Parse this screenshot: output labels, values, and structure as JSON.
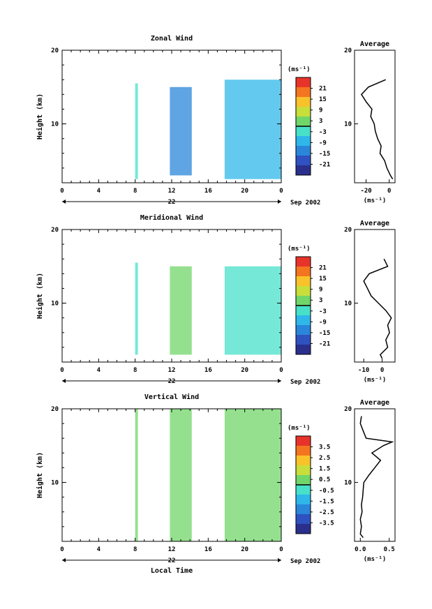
{
  "chart_data": [
    {
      "type": "heatmap",
      "title": "Zonal Wind",
      "ylabel": "Height (km)",
      "xlim": [
        0,
        24
      ],
      "ylim": [
        2,
        20
      ],
      "x_ticks": [
        "0",
        "4",
        "8",
        "12",
        "16",
        "20",
        "0"
      ],
      "y_ticks": [
        "10",
        "20"
      ],
      "day_label": "22",
      "date_label": "Sep 2002",
      "colorbar": {
        "unit": "(ms⁻¹)",
        "ticks": [
          "21",
          "15",
          "9",
          "3",
          "-3",
          "-9",
          "-15",
          "-21"
        ],
        "range": [
          -24,
          24
        ]
      },
      "data_blocks": [
        {
          "x_range": [
            8,
            8.3
          ],
          "y_range": [
            2.5,
            15.5
          ],
          "value": -5
        },
        {
          "x_range": [
            11.8,
            14.2
          ],
          "y_range": [
            3,
            15
          ],
          "value": -12
        },
        {
          "x_range": [
            17.8,
            24
          ],
          "y_range": [
            2.5,
            16
          ],
          "value": -10
        }
      ],
      "average_profile": {
        "title": "Average",
        "xlabel": "(ms⁻¹)",
        "x_ticks": [
          "-20",
          "0"
        ],
        "xlim": [
          -30,
          5
        ],
        "heights": [
          2.5,
          3,
          4,
          5,
          6,
          7,
          8,
          9,
          10,
          11,
          12,
          13,
          14,
          15,
          16
        ],
        "values": [
          3,
          1,
          -2,
          -4,
          -8,
          -7,
          -10,
          -12,
          -13,
          -16,
          -15,
          -20,
          -24,
          -18,
          -3
        ]
      }
    },
    {
      "type": "heatmap",
      "title": "Meridional Wind",
      "ylabel": "Height (km)",
      "xlim": [
        0,
        24
      ],
      "ylim": [
        2,
        20
      ],
      "x_ticks": [
        "0",
        "4",
        "8",
        "12",
        "16",
        "20",
        "0"
      ],
      "y_ticks": [
        "10",
        "20"
      ],
      "day_label": "22",
      "date_label": "Sep 2002",
      "colorbar": {
        "unit": "(ms⁻¹)",
        "ticks": [
          "21",
          "15",
          "9",
          "3",
          "-3",
          "-9",
          "-15",
          "-21"
        ],
        "range": [
          -24,
          24
        ]
      },
      "data_blocks": [
        {
          "x_range": [
            8,
            8.3
          ],
          "y_range": [
            3,
            15.5
          ],
          "value": -5
        },
        {
          "x_range": [
            11.8,
            14.2
          ],
          "y_range": [
            3,
            15
          ],
          "value": 1
        },
        {
          "x_range": [
            17.8,
            24
          ],
          "y_range": [
            3,
            15
          ],
          "value": 0
        }
      ],
      "average_profile": {
        "title": "Average",
        "xlabel": "(ms⁻¹)",
        "x_ticks": [
          "-10",
          "0"
        ],
        "xlim": [
          -15,
          7
        ],
        "heights": [
          2.5,
          3,
          4,
          5,
          6,
          7,
          8,
          9,
          10,
          11,
          12,
          13,
          14,
          15,
          16
        ],
        "values": [
          0,
          -1,
          3,
          2,
          4,
          3,
          5,
          2,
          -2,
          -6,
          -8,
          -10,
          -7,
          3,
          1
        ]
      }
    },
    {
      "type": "heatmap",
      "title": "Vertical Wind",
      "ylabel": "Height (km)",
      "xlabel": "Local Time",
      "xlim": [
        0,
        24
      ],
      "ylim": [
        2,
        20
      ],
      "x_ticks": [
        "0",
        "4",
        "8",
        "12",
        "16",
        "20",
        "0"
      ],
      "y_ticks": [
        "10",
        "20"
      ],
      "day_label": "22",
      "date_label": "Sep 2002",
      "colorbar": {
        "unit": "(ms⁻¹)",
        "ticks": [
          "3.5",
          "2.5",
          "1.5",
          "0.5",
          "-0.5",
          "-1.5",
          "-2.5",
          "-3.5"
        ],
        "range": [
          -4,
          4
        ]
      },
      "data_blocks": [
        {
          "x_range": [
            8,
            8.3
          ],
          "y_range": [
            2,
            20
          ],
          "value": 0.2
        },
        {
          "x_range": [
            11.8,
            14.2
          ],
          "y_range": [
            2,
            20
          ],
          "value": 0.3
        },
        {
          "x_range": [
            17.8,
            24
          ],
          "y_range": [
            2,
            20
          ],
          "value": 0.3
        }
      ],
      "average_profile": {
        "title": "Average",
        "xlabel": "(ms⁻¹)",
        "x_ticks": [
          "0.0",
          "0.5"
        ],
        "xlim": [
          -0.1,
          0.6
        ],
        "heights": [
          2.5,
          3,
          4,
          5,
          6,
          7,
          8,
          9,
          10,
          11,
          12,
          13,
          14,
          15,
          15.5,
          16,
          17,
          18,
          19
        ],
        "values": [
          0.05,
          0.0,
          0.02,
          0.0,
          0.03,
          0.02,
          0.04,
          0.05,
          0.06,
          0.15,
          0.25,
          0.35,
          0.2,
          0.4,
          0.55,
          0.1,
          0.05,
          0.0,
          0.02
        ]
      }
    }
  ]
}
